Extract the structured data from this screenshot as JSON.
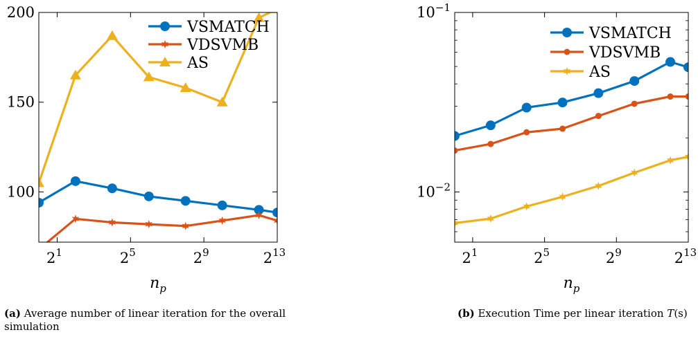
{
  "colors": {
    "VSMATCH": "#0072BD",
    "VDSVMB": "#D95319",
    "AS": "#EDB120"
  },
  "captions": [
    {
      "label": "(a)",
      "text": "Average number of linear iteration for the overall simulation"
    },
    {
      "label": "(b)",
      "text": "Execution Time per linear iteration ",
      "math": "T",
      "suffix": "(s)"
    }
  ],
  "chart_data": [
    {
      "type": "line",
      "xscale": "log2",
      "yscale": "linear",
      "x": [
        1,
        4,
        16,
        64,
        256,
        1024,
        4096,
        8192
      ],
      "xlim": [
        1,
        8192
      ],
      "ylim": [
        72,
        200
      ],
      "xticks": [
        {
          "v": 2,
          "base": "2",
          "exp": "1"
        },
        {
          "v": 32,
          "base": "2",
          "exp": "5"
        },
        {
          "v": 512,
          "base": "2",
          "exp": "9"
        },
        {
          "v": 8192,
          "base": "2",
          "exp": "13"
        }
      ],
      "yticks": [
        {
          "v": 100,
          "label": "100"
        },
        {
          "v": 150,
          "label": "150"
        },
        {
          "v": 200,
          "label": "200"
        }
      ],
      "xlabel_base": "n",
      "xlabel_sub": "p",
      "legend_position": "top-right",
      "series": [
        {
          "name": "VSMATCH",
          "marker": "circle",
          "values": [
            94,
            106,
            102,
            97.5,
            95,
            92.5,
            90,
            88.5
          ]
        },
        {
          "name": "VDSVMB",
          "marker": "star",
          "values": [
            68,
            85,
            83,
            82,
            81,
            84,
            87,
            84
          ]
        },
        {
          "name": "AS",
          "marker": "triangle",
          "values": [
            105,
            165,
            187,
            164,
            158,
            150,
            197,
            202
          ]
        }
      ]
    },
    {
      "type": "line",
      "xscale": "log2",
      "yscale": "log10",
      "x": [
        1,
        4,
        16,
        64,
        256,
        1024,
        4096,
        8192
      ],
      "xlim": [
        1,
        8192
      ],
      "ylim": [
        0.00525,
        0.1
      ],
      "xticks": [
        {
          "v": 2,
          "base": "2",
          "exp": "1"
        },
        {
          "v": 32,
          "base": "2",
          "exp": "5"
        },
        {
          "v": 512,
          "base": "2",
          "exp": "9"
        },
        {
          "v": 8192,
          "base": "2",
          "exp": "13"
        }
      ],
      "yticks": [
        {
          "v": 0.01,
          "base": "10",
          "exp": "−2"
        },
        {
          "v": 0.1,
          "base": "10",
          "exp": "−1"
        }
      ],
      "xlabel_base": "n",
      "xlabel_sub": "p",
      "legend_position": "top-right",
      "series": [
        {
          "name": "VSMATCH",
          "marker": "circle",
          "values": [
            0.0205,
            0.0235,
            0.0295,
            0.0315,
            0.0355,
            0.0415,
            0.053,
            0.0495
          ]
        },
        {
          "name": "VDSVMB",
          "marker": "circle-small",
          "values": [
            0.017,
            0.0185,
            0.0215,
            0.0225,
            0.0265,
            0.031,
            0.034,
            0.034
          ]
        },
        {
          "name": "AS",
          "marker": "star",
          "values": [
            0.0067,
            0.0071,
            0.0083,
            0.0094,
            0.0108,
            0.0128,
            0.015,
            0.0157
          ]
        }
      ]
    }
  ]
}
